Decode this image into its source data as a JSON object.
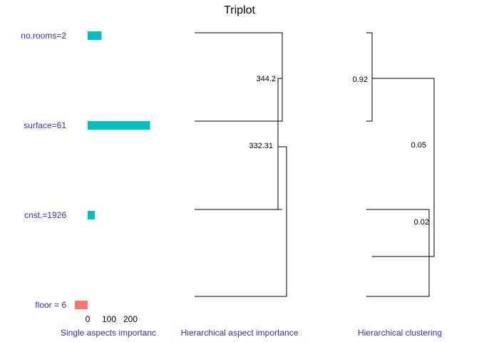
{
  "chart_data": [
    {
      "type": "bar",
      "panel": "single-aspects",
      "title": "Triplot",
      "categories": [
        "no.rooms=2",
        "surface=61",
        "cnst.=1926",
        "floor = 6"
      ],
      "values": [
        65,
        292,
        33,
        -60
      ],
      "colors": {
        "positive": "#00BFC4",
        "negative": "#F8766D"
      },
      "xticks": [
        "0",
        "100",
        "200"
      ],
      "xtick_values": [
        0,
        100,
        200
      ],
      "xlim": [
        -70,
        340
      ],
      "xlabel": "Single aspects importanc"
    },
    {
      "type": "dendrogram",
      "panel": "hierarchical-aspect-importance",
      "xlabel": "Hierarchical aspect importance",
      "leaves": [
        "no.rooms=2",
        "surface=61",
        "cnst.=1926",
        "floor = 6"
      ],
      "merges": [
        {
          "members": [
            "no.rooms=2",
            "surface=61"
          ],
          "label": "344.2"
        },
        {
          "members": [
            "no.rooms=2",
            "surface=61",
            "cnst.=1926"
          ],
          "label": "332.31"
        },
        {
          "members": [
            "no.rooms=2",
            "surface=61",
            "cnst.=1926",
            "floor = 6"
          ],
          "label": ""
        }
      ]
    },
    {
      "type": "dendrogram",
      "panel": "hierarchical-clustering",
      "xlabel": "Hierarchical clustering",
      "leaves": [
        "no.rooms=2",
        "surface=61",
        "cnst.=1926",
        "floor = 6"
      ],
      "merges": [
        {
          "members": [
            "no.rooms=2",
            "surface=61"
          ],
          "label": "0.92"
        },
        {
          "members": [
            "no.rooms=2",
            "surface=61",
            "cnst.=1926",
            "floor = 6"
          ],
          "label": "0.05"
        },
        {
          "members": [
            "cnst.=1926",
            "floor = 6"
          ],
          "label": "0.02"
        }
      ]
    }
  ]
}
